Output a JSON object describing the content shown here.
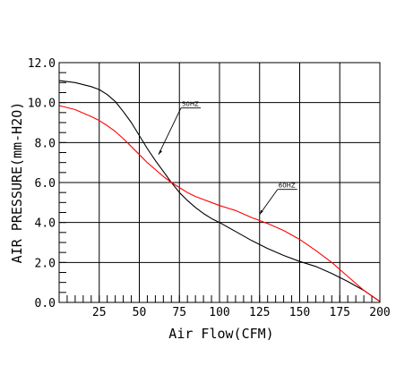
{
  "chart_data": {
    "type": "line",
    "title": "",
    "xlabel": "Air Flow(CFM)",
    "ylabel": "AIR PRESSURE(mm-H2O)",
    "xlim": [
      0,
      200
    ],
    "ylim": [
      0,
      12
    ],
    "x_ticks": [
      25,
      50,
      75,
      100,
      125,
      150,
      175,
      200
    ],
    "x_tick_labels": [
      "25",
      "50",
      "75",
      "100",
      "125",
      "150",
      "175",
      "200"
    ],
    "y_ticks": [
      0,
      2,
      4,
      6,
      8,
      10,
      12
    ],
    "y_tick_labels": [
      "0.0",
      "2.0",
      "4.0",
      "6.0",
      "8.0",
      "10.0",
      "12.0"
    ],
    "grid": true,
    "series": [
      {
        "name": "50HZ",
        "color": "#000000",
        "x": [
          0,
          10,
          20,
          25,
          30,
          35,
          40,
          45,
          50,
          55,
          60,
          65,
          70,
          75,
          80,
          85,
          90,
          95,
          100,
          110,
          120,
          130,
          140,
          150,
          160,
          170,
          180,
          190,
          200
        ],
        "y": [
          11.1,
          11.0,
          10.8,
          10.65,
          10.4,
          10.05,
          9.55,
          9.0,
          8.35,
          7.7,
          7.1,
          6.55,
          6.0,
          5.5,
          5.1,
          4.75,
          4.45,
          4.2,
          4.0,
          3.55,
          3.1,
          2.7,
          2.35,
          2.05,
          1.8,
          1.45,
          1.05,
          0.6,
          0.05
        ]
      },
      {
        "name": "60HZ",
        "color": "#ff0000",
        "x": [
          0,
          10,
          20,
          25,
          30,
          35,
          40,
          45,
          50,
          55,
          60,
          65,
          70,
          75,
          80,
          85,
          90,
          95,
          100,
          110,
          120,
          130,
          140,
          150,
          160,
          170,
          180,
          190,
          200
        ],
        "y": [
          9.85,
          9.65,
          9.3,
          9.1,
          8.85,
          8.55,
          8.2,
          7.8,
          7.4,
          7.0,
          6.65,
          6.3,
          6.0,
          5.75,
          5.5,
          5.3,
          5.15,
          5.0,
          4.85,
          4.6,
          4.25,
          3.95,
          3.6,
          3.15,
          2.6,
          2.0,
          1.3,
          0.6,
          0.05
        ]
      }
    ],
    "annotations": [
      {
        "text": "50HZ",
        "series": "50HZ",
        "x": 62,
        "y": 7.4
      },
      {
        "text": "60HZ",
        "series": "60HZ",
        "x": 125,
        "y": 4.4
      }
    ]
  }
}
